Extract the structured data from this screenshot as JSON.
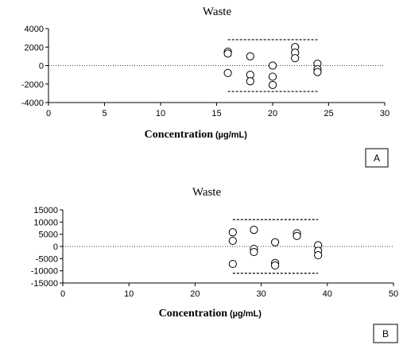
{
  "chart_data": [
    {
      "type": "scatter",
      "panel_label": "A",
      "title": "Waste",
      "xlabel": "Concentration",
      "xlabel_unit": "(µg/mL)",
      "ylabel": "",
      "xlim": [
        0,
        30
      ],
      "ylim": [
        -4000,
        4000
      ],
      "xticks": [
        0,
        5,
        10,
        15,
        20,
        25,
        30
      ],
      "yticks": [
        4000,
        2000,
        0,
        -2000,
        -4000
      ],
      "zero_line": true,
      "limit_lines": [
        2800,
        -2800
      ],
      "limit_x_range": [
        16,
        24
      ],
      "points": [
        {
          "x": 16,
          "y": 1500
        },
        {
          "x": 16,
          "y": 1300
        },
        {
          "x": 16,
          "y": -800
        },
        {
          "x": 18,
          "y": 1000
        },
        {
          "x": 18,
          "y": -1000
        },
        {
          "x": 18,
          "y": -1700
        },
        {
          "x": 20,
          "y": 0
        },
        {
          "x": 20,
          "y": -1200
        },
        {
          "x": 20,
          "y": -2100
        },
        {
          "x": 22,
          "y": 2000
        },
        {
          "x": 22,
          "y": 1400
        },
        {
          "x": 22,
          "y": 800
        },
        {
          "x": 24,
          "y": 200
        },
        {
          "x": 24,
          "y": -400
        },
        {
          "x": 24,
          "y": -700
        }
      ]
    },
    {
      "type": "scatter",
      "panel_label": "B",
      "title": "Waste",
      "xlabel": "Concentration",
      "xlabel_unit": "(µg/mL)",
      "ylabel": "",
      "xlim": [
        0,
        50
      ],
      "ylim": [
        -15000,
        15000
      ],
      "xticks": [
        0,
        10,
        20,
        30,
        40,
        50
      ],
      "yticks": [
        15000,
        10000,
        5000,
        0,
        -5000,
        -10000,
        -15000
      ],
      "zero_line": true,
      "limit_lines": [
        11000,
        -11000
      ],
      "limit_x_range": [
        25.7,
        38.6
      ],
      "points": [
        {
          "x": 25.7,
          "y": 5800
        },
        {
          "x": 25.7,
          "y": 2300
        },
        {
          "x": 25.7,
          "y": -7200
        },
        {
          "x": 28.9,
          "y": 6800
        },
        {
          "x": 28.9,
          "y": -1000
        },
        {
          "x": 28.9,
          "y": -2300
        },
        {
          "x": 32.1,
          "y": 1700
        },
        {
          "x": 32.1,
          "y": -6800
        },
        {
          "x": 32.1,
          "y": -7800
        },
        {
          "x": 35.4,
          "y": 5400
        },
        {
          "x": 35.4,
          "y": 4300
        },
        {
          "x": 38.6,
          "y": 500
        },
        {
          "x": 38.6,
          "y": -1800
        },
        {
          "x": 38.6,
          "y": -3600
        }
      ]
    }
  ]
}
